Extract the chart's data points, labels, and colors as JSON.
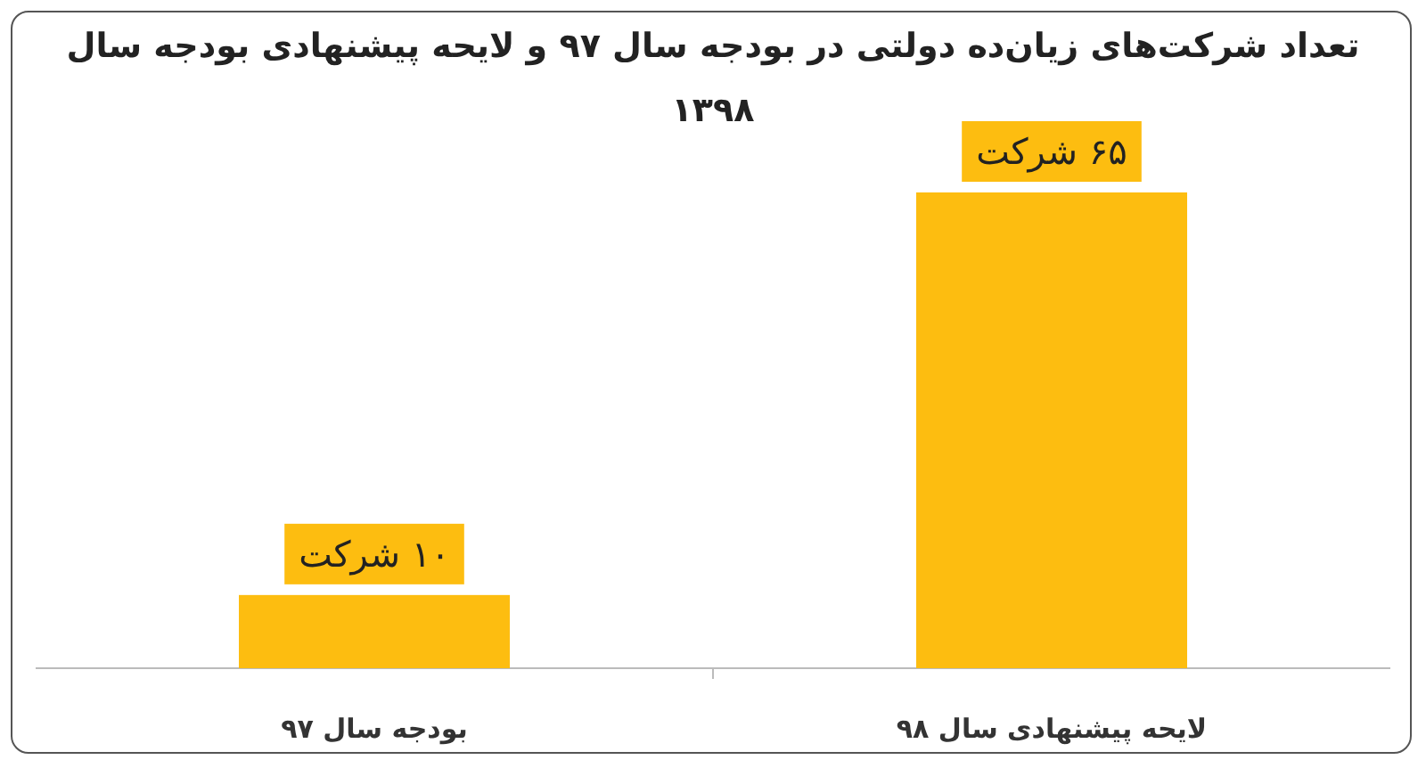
{
  "chart_data": {
    "type": "bar",
    "title": "تعداد شرکت‌های زیان‌ده دولتی در بودجه سال ۹۷ و لایحه پیشنهادی بودجه سال ۱۳۹۸",
    "categories": [
      "بودجه سال ۹۷",
      "لایحه پیشنهادی سال ۹۸"
    ],
    "values": [
      10,
      65
    ],
    "value_labels": [
      "۱۰ شرکت",
      "۶۵ شرکت"
    ],
    "color": "#fdbd10"
  }
}
